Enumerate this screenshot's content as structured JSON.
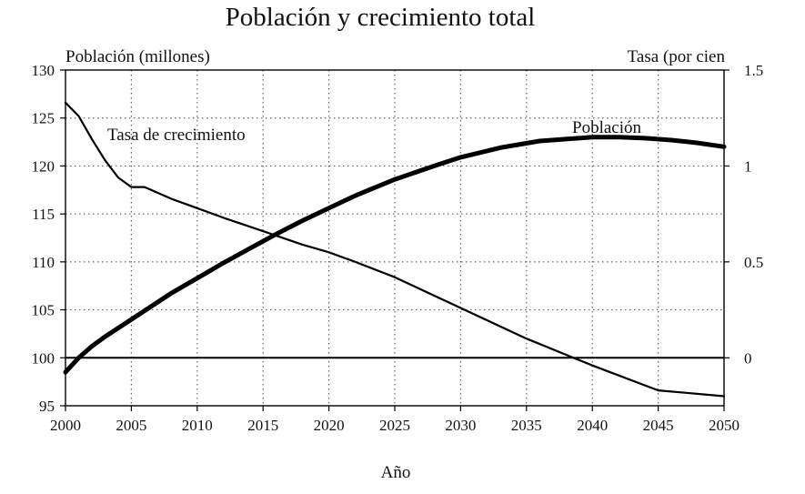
{
  "chart_data": {
    "type": "line",
    "title": "Población y crecimiento total",
    "xlabel": "Año",
    "ylabel_left": "Población (millones)",
    "ylabel_right": "Tasa (por cien",
    "xlim": [
      2000,
      2050
    ],
    "ylim_left": [
      95,
      130
    ],
    "ylim_right": [
      -0.25,
      1.5
    ],
    "x_ticks": [
      2000,
      2005,
      2010,
      2015,
      2020,
      2025,
      2030,
      2035,
      2040,
      2045,
      2050
    ],
    "y_ticks_left": [
      95,
      100,
      105,
      110,
      115,
      120,
      125,
      130
    ],
    "y_ticks_right": [
      {
        "value": 1.5,
        "label": "1.5"
      },
      {
        "value": 1,
        "label": "1"
      },
      {
        "value": 0.5,
        "label": "0.5"
      },
      {
        "value": 0,
        "label": "0"
      }
    ],
    "grid": true,
    "series": [
      {
        "name": "Tasa de crecimiento",
        "axis": "right",
        "x": [
          2000,
          2001,
          2002,
          2003,
          2004,
          2005,
          2006,
          2008,
          2010,
          2012,
          2015,
          2018,
          2020,
          2022,
          2025,
          2030,
          2035,
          2040,
          2045,
          2050
        ],
        "y": [
          1.33,
          1.26,
          1.14,
          1.03,
          0.94,
          0.89,
          0.89,
          0.83,
          0.78,
          0.73,
          0.66,
          0.59,
          0.55,
          0.5,
          0.42,
          0.26,
          0.1,
          -0.04,
          -0.17,
          -0.2
        ]
      },
      {
        "name": "Población",
        "axis": "left",
        "x": [
          2000,
          2001,
          2002,
          2003,
          2004,
          2005,
          2006,
          2008,
          2010,
          2012,
          2014,
          2016,
          2018,
          2020,
          2022,
          2025,
          2028,
          2030,
          2033,
          2036,
          2038,
          2040,
          2042,
          2044,
          2046,
          2048,
          2050
        ],
        "y": [
          98.5,
          100.0,
          101.2,
          102.2,
          103.1,
          104.0,
          104.9,
          106.7,
          108.3,
          109.9,
          111.4,
          112.9,
          114.3,
          115.6,
          116.9,
          118.6,
          120.0,
          120.9,
          121.9,
          122.6,
          122.8,
          123.0,
          123.0,
          122.9,
          122.7,
          122.4,
          122.0
        ]
      }
    ],
    "annotations": [
      {
        "text": "Tasa de crecimiento",
        "series": "Tasa de crecimiento"
      },
      {
        "text": "Población",
        "series": "Población"
      }
    ],
    "reference_line": {
      "axis": "right",
      "value": 0
    }
  }
}
